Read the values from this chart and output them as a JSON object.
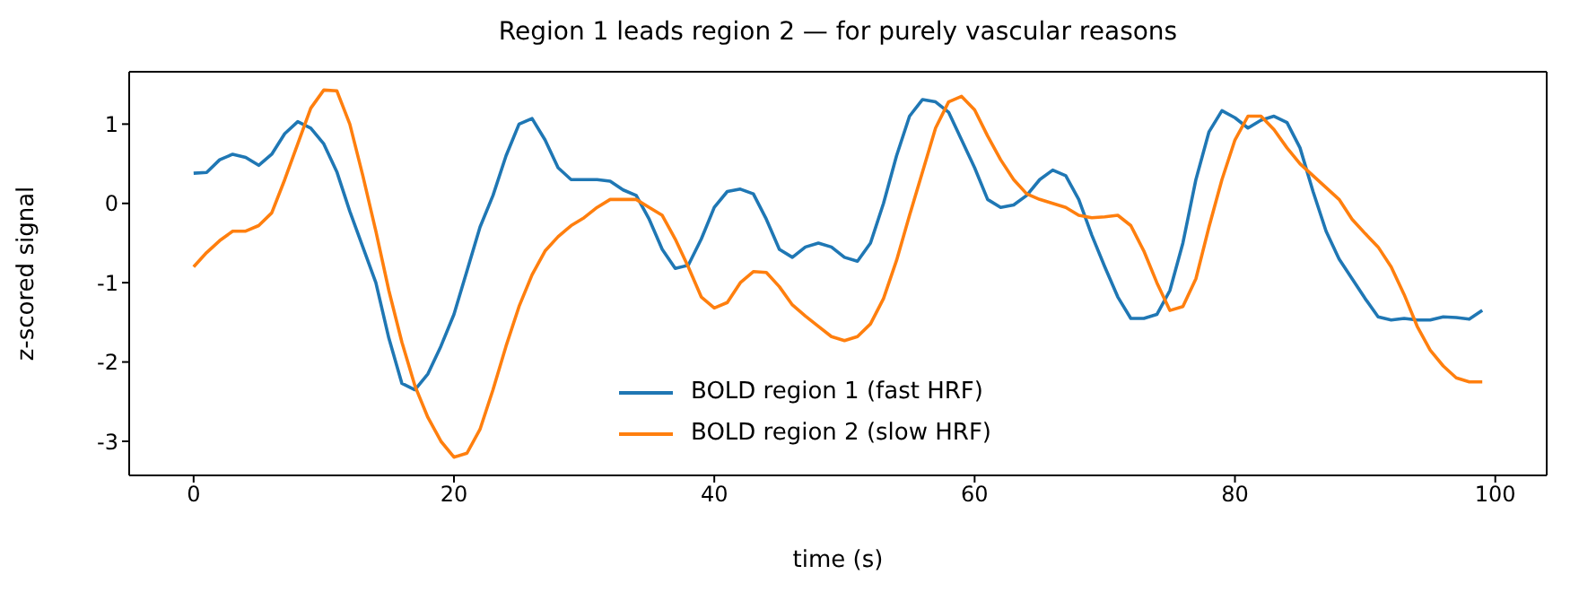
{
  "chart_data": {
    "type": "line",
    "title": "Region 1 leads region 2 — for purely vascular reasons",
    "xlabel": "time (s)",
    "ylabel": "z-scored signal",
    "x": [
      0,
      1,
      2,
      3,
      4,
      5,
      6,
      7,
      8,
      9,
      10,
      11,
      12,
      13,
      14,
      15,
      16,
      17,
      18,
      19,
      20,
      21,
      22,
      23,
      24,
      25,
      26,
      27,
      28,
      29,
      30,
      31,
      32,
      33,
      34,
      35,
      36,
      37,
      38,
      39,
      40,
      41,
      42,
      43,
      44,
      45,
      46,
      47,
      48,
      49,
      50,
      51,
      52,
      53,
      54,
      55,
      56,
      57,
      58,
      59,
      60,
      61,
      62,
      63,
      64,
      65,
      66,
      67,
      68,
      69,
      70,
      71,
      72,
      73,
      74,
      75,
      76,
      77,
      78,
      79,
      80,
      81,
      82,
      83,
      84,
      85,
      86,
      87,
      88,
      89,
      90,
      91,
      92,
      93,
      94,
      95,
      96,
      97,
      98,
      99
    ],
    "series": [
      {
        "name": "BOLD region 1 (fast HRF)",
        "color": "#1f77b4",
        "values": [
          0.38,
          0.39,
          0.55,
          0.62,
          0.58,
          0.48,
          0.62,
          0.88,
          1.03,
          0.95,
          0.75,
          0.4,
          -0.1,
          -0.55,
          -1.0,
          -1.7,
          -2.27,
          -2.35,
          -2.15,
          -1.8,
          -1.4,
          -0.85,
          -0.3,
          0.1,
          0.6,
          1.0,
          1.07,
          0.8,
          0.45,
          0.3,
          0.3,
          0.3,
          0.28,
          0.17,
          0.1,
          -0.2,
          -0.58,
          -0.82,
          -0.78,
          -0.45,
          -0.05,
          0.15,
          0.18,
          0.12,
          -0.2,
          -0.58,
          -0.68,
          -0.55,
          -0.5,
          -0.55,
          -0.68,
          -0.73,
          -0.5,
          0.0,
          0.6,
          1.1,
          1.31,
          1.28,
          1.15,
          0.8,
          0.45,
          0.05,
          -0.05,
          -0.02,
          0.1,
          0.3,
          0.42,
          0.35,
          0.05,
          -0.4,
          -0.8,
          -1.18,
          -1.45,
          -1.45,
          -1.4,
          -1.1,
          -0.5,
          0.3,
          0.9,
          1.17,
          1.08,
          0.95,
          1.05,
          1.1,
          1.02,
          0.7,
          0.15,
          -0.35,
          -0.7,
          -0.95,
          -1.2,
          -1.43,
          -1.47,
          -1.45,
          -1.47,
          -1.47,
          -1.43,
          -1.44,
          -1.46,
          -1.35
        ]
      },
      {
        "name": "BOLD region 2 (slow HRF)",
        "color": "#ff7f0e",
        "values": [
          -0.8,
          -0.62,
          -0.47,
          -0.35,
          -0.35,
          -0.28,
          -0.12,
          0.3,
          0.75,
          1.2,
          1.43,
          1.42,
          1.0,
          0.35,
          -0.35,
          -1.1,
          -1.75,
          -2.3,
          -2.7,
          -3.0,
          -3.2,
          -3.15,
          -2.85,
          -2.35,
          -1.8,
          -1.3,
          -0.9,
          -0.6,
          -0.42,
          -0.28,
          -0.18,
          -0.05,
          0.05,
          0.05,
          0.05,
          -0.05,
          -0.15,
          -0.45,
          -0.8,
          -1.18,
          -1.32,
          -1.25,
          -1.0,
          -0.86,
          -0.87,
          -1.05,
          -1.28,
          -1.42,
          -1.55,
          -1.68,
          -1.73,
          -1.68,
          -1.52,
          -1.2,
          -0.72,
          -0.15,
          0.4,
          0.95,
          1.28,
          1.35,
          1.18,
          0.85,
          0.55,
          0.3,
          0.12,
          0.05,
          0.0,
          -0.05,
          -0.15,
          -0.18,
          -0.17,
          -0.15,
          -0.28,
          -0.6,
          -1.0,
          -1.35,
          -1.3,
          -0.95,
          -0.3,
          0.3,
          0.8,
          1.1,
          1.1,
          0.93,
          0.7,
          0.5,
          0.35,
          0.2,
          0.05,
          -0.2,
          -0.38,
          -0.55,
          -0.8,
          -1.15,
          -1.55,
          -1.85,
          -2.05,
          -2.2,
          -2.25,
          -2.25
        ]
      }
    ],
    "xlim": [
      -4.95,
      103.95
    ],
    "xticks": [
      0,
      20,
      40,
      60,
      80,
      100
    ],
    "ylim": [
      -3.43,
      1.66
    ],
    "yticks": [
      -3,
      -2,
      -1,
      0,
      1
    ],
    "grid": false,
    "legend": "bottom",
    "marker": "none",
    "line_style": "solid"
  }
}
